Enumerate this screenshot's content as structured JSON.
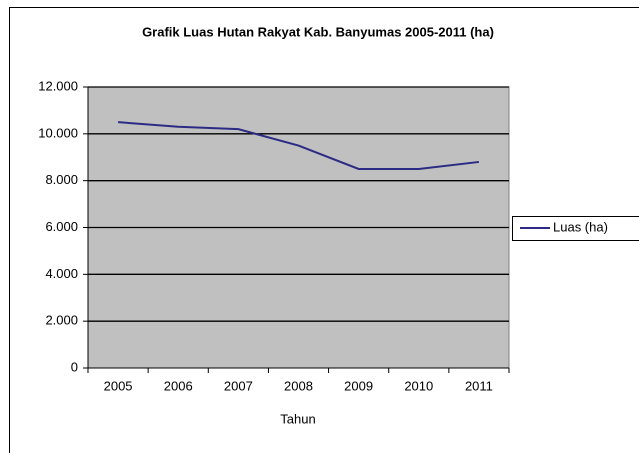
{
  "chart_data": {
    "type": "line",
    "title": "Grafik Luas Hutan Rakyat Kab. Banyumas 2005-2011 (ha)",
    "x_label": "Tahun",
    "categories": [
      "2005",
      "2006",
      "2007",
      "2008",
      "2009",
      "2010",
      "2011"
    ],
    "series": [
      {
        "name": "Luas (ha)",
        "color": "#2b2b85",
        "values": [
          10500,
          10300,
          10200,
          9500,
          8500,
          8500,
          8800
        ]
      }
    ],
    "ylim": [
      0,
      12000
    ],
    "yticks": [
      0,
      {
        "value": 2000,
        "label": "2.000"
      },
      {
        "value": 4000,
        "label": "4.000"
      },
      {
        "value": 6000,
        "label": "6.000"
      },
      {
        "value": 8000,
        "label": "8.000"
      },
      {
        "value": 10000,
        "label": "10.000"
      },
      {
        "value": 12000,
        "label": "12.000"
      }
    ],
    "grid": true,
    "plot_background": "#c0c0c0",
    "legend": "right"
  }
}
